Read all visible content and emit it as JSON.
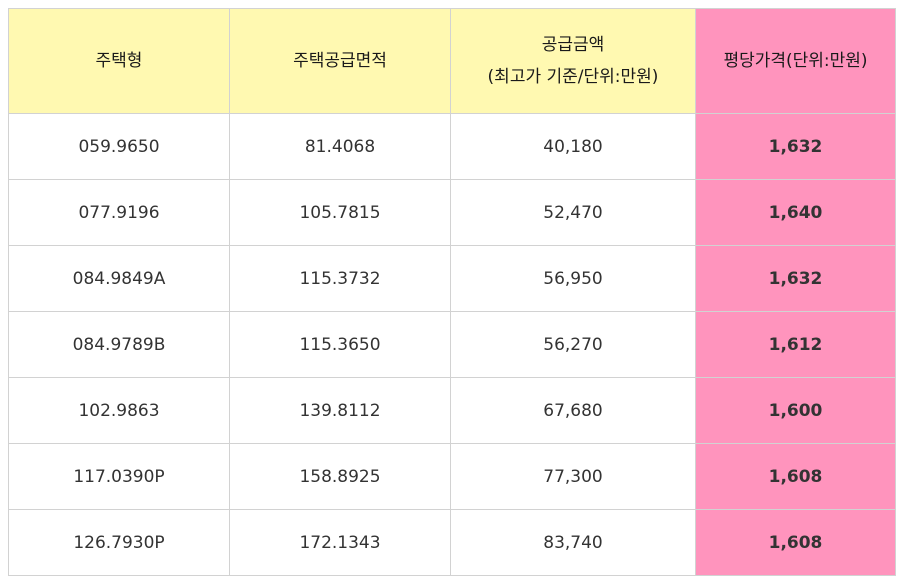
{
  "header": {
    "type_label": "주택형",
    "area_label": "주택공급면적",
    "amount_label_line1": "공급금액",
    "amount_label_line2": "(최고가 기준/단위:만원)",
    "pyeong_label": "평당가격(단위:만원)"
  },
  "colors": {
    "header_yellow": "#fff9b1",
    "highlight_pink": "#ff94bd",
    "border": "#d2d2d2"
  },
  "rows": [
    {
      "type": "059.9650",
      "area": "81.4068",
      "amount": "40,180",
      "pyeong": "1,632"
    },
    {
      "type": "077.9196",
      "area": "105.7815",
      "amount": "52,470",
      "pyeong": "1,640"
    },
    {
      "type": "084.9849A",
      "area": "115.3732",
      "amount": "56,950",
      "pyeong": "1,632"
    },
    {
      "type": "084.9789B",
      "area": "115.3650",
      "amount": "56,270",
      "pyeong": "1,612"
    },
    {
      "type": "102.9863",
      "area": "139.8112",
      "amount": "67,680",
      "pyeong": "1,600"
    },
    {
      "type": "117.0390P",
      "area": "158.8925",
      "amount": "77,300",
      "pyeong": "1,608"
    },
    {
      "type": "126.7930P",
      "area": "172.1343",
      "amount": "83,740",
      "pyeong": "1,608"
    }
  ]
}
